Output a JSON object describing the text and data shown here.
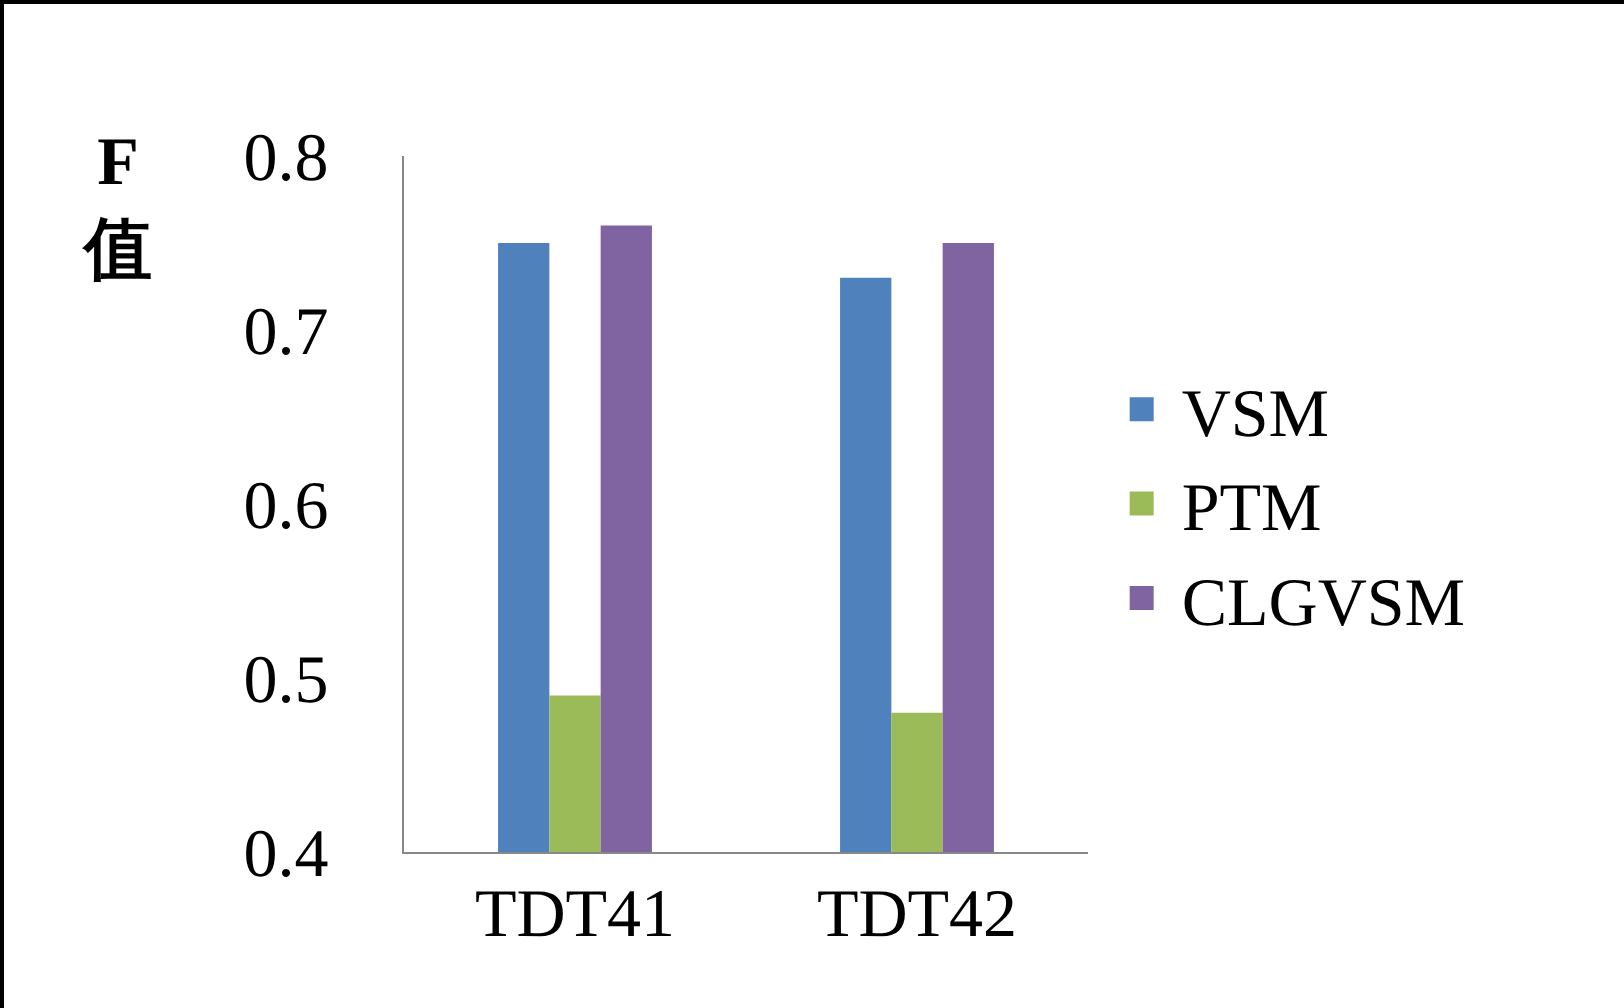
{
  "chart_data": {
    "type": "bar",
    "ylabel": "F值",
    "categories": [
      "TDT41",
      "TDT42"
    ],
    "series": [
      {
        "name": "VSM",
        "color": "#4f81bd",
        "values": [
          0.75,
          0.73
        ]
      },
      {
        "name": "PTM",
        "color": "#9bbb59",
        "values": [
          0.49,
          0.48
        ]
      },
      {
        "name": "CLGVSM",
        "color": "#8064a2",
        "values": [
          0.76,
          0.75
        ]
      }
    ],
    "ylim": [
      0.4,
      0.8
    ],
    "yticks": [
      0.4,
      0.5,
      0.6,
      0.7,
      0.8
    ],
    "grid": false,
    "legend": "right"
  }
}
